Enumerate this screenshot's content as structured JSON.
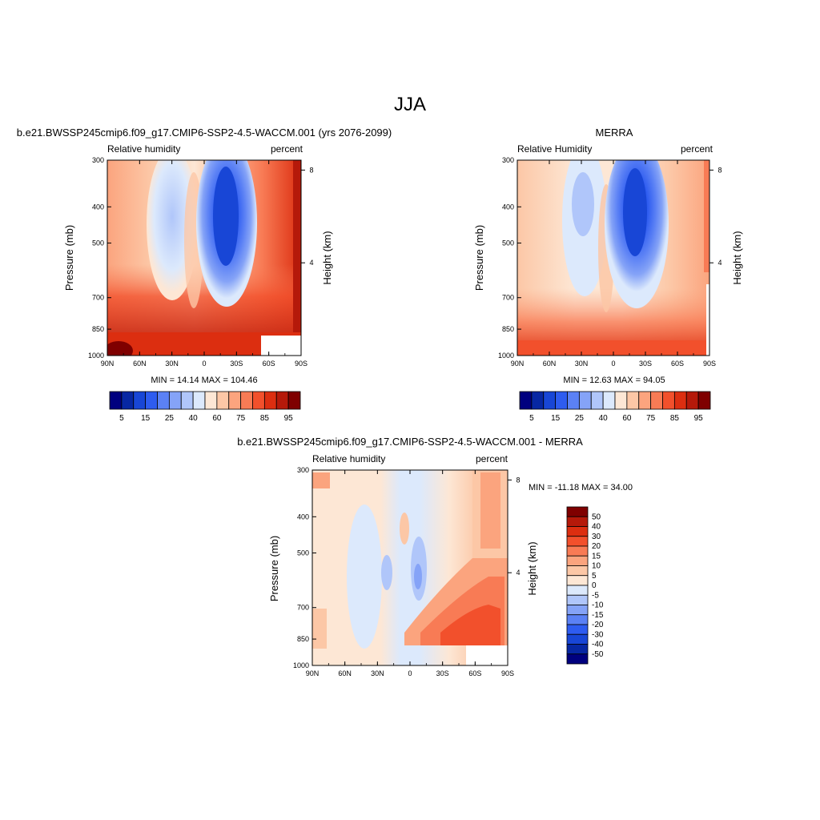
{
  "page_title": "JJA",
  "diff_title": "b.e21.BWSSP245cmip6.f09_g17.CMIP6-SSP2-4.5-WACCM.001 - MERRA",
  "chart_data": [
    {
      "type": "heatmap",
      "title": "b.e21.BWSSP245cmip6.f09_g17.CMIP6-SSP2-4.5-WACCM.001 (yrs 2076-2099)",
      "left_label": "Relative humidity",
      "right_label": "percent",
      "ylabel": "Pressure (mb)",
      "ylabel_right": "Height (km)",
      "x_ticks": [
        "90N",
        "60N",
        "30N",
        "0",
        "30S",
        "60S",
        "90S"
      ],
      "y_ticks": [
        "300",
        "400",
        "500",
        "700",
        "850",
        "1000"
      ],
      "height_ticks": [
        "8",
        "4"
      ],
      "stats": "MIN =  14.14  MAX = 104.46",
      "colorbar_labels": [
        "5",
        "15",
        "25",
        "40",
        "60",
        "75",
        "85",
        "95"
      ],
      "min": 14.14,
      "max": 104.46
    },
    {
      "type": "heatmap",
      "title": "MERRA",
      "left_label": "Relative Humidity",
      "right_label": "percent",
      "ylabel": "Pressure (mb)",
      "ylabel_right": "Height (km)",
      "x_ticks": [
        "90N",
        "60N",
        "30N",
        "0",
        "30S",
        "60S",
        "90S"
      ],
      "y_ticks": [
        "300",
        "400",
        "500",
        "700",
        "850",
        "1000"
      ],
      "height_ticks": [
        "8",
        "4"
      ],
      "stats": "MIN =  12.63  MAX =  94.05",
      "colorbar_labels": [
        "5",
        "15",
        "25",
        "40",
        "60",
        "75",
        "85",
        "95"
      ],
      "min": 12.63,
      "max": 94.05
    },
    {
      "type": "heatmap",
      "left_label": "Relative humidity",
      "right_label": "percent",
      "ylabel": "Pressure (mb)",
      "ylabel_right": "Height (km)",
      "x_ticks": [
        "90N",
        "60N",
        "30N",
        "0",
        "30S",
        "60S",
        "90S"
      ],
      "y_ticks": [
        "300",
        "400",
        "500",
        "700",
        "850",
        "1000"
      ],
      "height_ticks": [
        "8",
        "4"
      ],
      "stats": "MIN = -11.18  MAX =  34.00",
      "colorbar_labels": [
        "50",
        "40",
        "30",
        "20",
        "15",
        "10",
        "5",
        "0",
        "-5",
        "-10",
        "-15",
        "-20",
        "-30",
        "-40",
        "-50"
      ],
      "min": -11.18,
      "max": 34.0
    }
  ],
  "colors": {
    "abs_scale": [
      "#00007f",
      "#0727a3",
      "#1846d6",
      "#2e5cf0",
      "#5b81f5",
      "#85a3f7",
      "#b0c6fa",
      "#dce9fc",
      "#fde7d5",
      "#fcc7a6",
      "#fba47e",
      "#f87b55",
      "#f2502c",
      "#dc2e10",
      "#b5190a",
      "#7f0000"
    ],
    "diff_scale": [
      "#7f0000",
      "#b5190a",
      "#dc2e10",
      "#f2502c",
      "#f87b55",
      "#fba47e",
      "#fcc7a6",
      "#fde7d5",
      "#dce9fc",
      "#b0c6fa",
      "#85a3f7",
      "#5b81f5",
      "#2e5cf0",
      "#1846d6",
      "#0727a3",
      "#00007f"
    ]
  }
}
